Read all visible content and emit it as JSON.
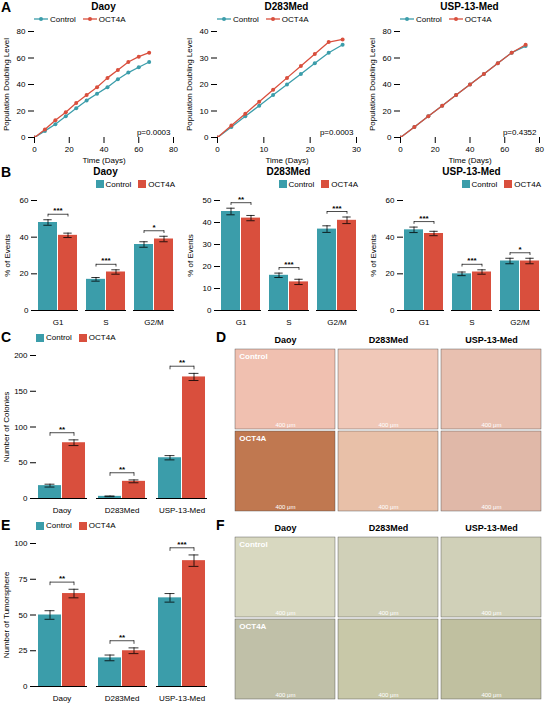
{
  "chart_data": [
    {
      "type": "line",
      "panel_label": "A",
      "title": "Daoy",
      "x": [
        0,
        6,
        12,
        18,
        24,
        30,
        36,
        42,
        48,
        54,
        60,
        66
      ],
      "series": [
        {
          "name": "Control",
          "color": "#3b9daa",
          "marker": "circle",
          "values": [
            0,
            5,
            10,
            16,
            22,
            28,
            33,
            38,
            44,
            49,
            53,
            57
          ]
        },
        {
          "name": "OCT4A",
          "color": "#d94f3d",
          "marker": "circle",
          "values": [
            0,
            6,
            13,
            19,
            26,
            32,
            38,
            45,
            51,
            57,
            61,
            64
          ]
        }
      ],
      "xlim": [
        0,
        80
      ],
      "ylim": [
        0,
        80
      ],
      "xticks": [
        0,
        20,
        40,
        60,
        80
      ],
      "yticks": [
        0,
        20,
        40,
        60,
        80
      ],
      "xlabel": "Time (Days)",
      "ylabel": "Population Doubling Level",
      "annotations": [
        "p=0.0003"
      ],
      "legend": "upper left"
    },
    {
      "type": "line",
      "title": "D283Med",
      "x": [
        0,
        3,
        6,
        9,
        12,
        15,
        18,
        21,
        24,
        27
      ],
      "series": [
        {
          "name": "Control",
          "color": "#3b9daa",
          "marker": "circle",
          "values": [
            0,
            4,
            8,
            12,
            16,
            20,
            24,
            28,
            32,
            35
          ]
        },
        {
          "name": "OCT4A",
          "color": "#d94f3d",
          "marker": "circle",
          "values": [
            0,
            4.5,
            9,
            13.5,
            18,
            22.5,
            27,
            31.5,
            36,
            37
          ]
        }
      ],
      "xlim": [
        0,
        30
      ],
      "ylim": [
        0,
        40
      ],
      "xticks": [
        0,
        10,
        20,
        30
      ],
      "yticks": [
        0,
        10,
        20,
        30,
        40
      ],
      "xlabel": "Time (Days)",
      "ylabel": "Population Doubling Level",
      "annotations": [
        "p=0.0003"
      ],
      "legend": "upper left"
    },
    {
      "type": "line",
      "title": "USP-13-Med",
      "x": [
        0,
        8,
        16,
        24,
        32,
        40,
        48,
        56,
        64,
        72
      ],
      "series": [
        {
          "name": "Control",
          "color": "#3b9daa",
          "marker": "circle",
          "values": [
            0,
            8,
            16,
            24,
            32,
            40,
            48,
            56,
            64,
            69
          ]
        },
        {
          "name": "OCT4A",
          "color": "#d94f3d",
          "marker": "circle",
          "values": [
            0,
            8,
            16,
            24,
            32,
            40,
            48,
            56,
            64,
            70
          ]
        }
      ],
      "xlim": [
        0,
        80
      ],
      "ylim": [
        0,
        80
      ],
      "xticks": [
        0,
        20,
        40,
        60,
        80
      ],
      "yticks": [
        0,
        20,
        40,
        60,
        80
      ],
      "xlabel": "Time (Days)",
      "ylabel": "Population Doubling Level",
      "annotations": [
        "p=0.4352"
      ],
      "legend": "upper left"
    },
    {
      "type": "bar",
      "panel_label": "B",
      "title": "Daoy",
      "categories": [
        "G1",
        "S",
        "G2/M"
      ],
      "series": [
        {
          "name": "Control",
          "color": "#3b9daa",
          "values": [
            48,
            17,
            36
          ],
          "errors": [
            1.5,
            1.0,
            1.5
          ]
        },
        {
          "name": "OCT4A",
          "color": "#d94f3d",
          "values": [
            41,
            21,
            39
          ],
          "errors": [
            1.2,
            1.2,
            1.5
          ]
        }
      ],
      "ylim": [
        0,
        60
      ],
      "yticks": [
        0,
        20,
        40,
        60
      ],
      "ylabel": "% of Events",
      "significance": [
        "***",
        "***",
        "*"
      ],
      "legend": "upper right"
    },
    {
      "type": "bar",
      "title": "D283Med",
      "categories": [
        "G1",
        "S",
        "G2/M"
      ],
      "series": [
        {
          "name": "Control",
          "color": "#3b9daa",
          "values": [
            45,
            16,
            37
          ],
          "errors": [
            1.5,
            1.0,
            1.5
          ]
        },
        {
          "name": "OCT4A",
          "color": "#d94f3d",
          "values": [
            42,
            13,
            41
          ],
          "errors": [
            1.2,
            1.2,
            1.5
          ]
        }
      ],
      "ylim": [
        0,
        50
      ],
      "yticks": [
        0,
        10,
        20,
        30,
        40,
        50
      ],
      "ylabel": "% of Events",
      "significance": [
        "**",
        "***",
        "***"
      ],
      "legend": "upper right"
    },
    {
      "type": "bar",
      "title": "USP-13-Med",
      "categories": [
        "G1",
        "S",
        "G2/M"
      ],
      "series": [
        {
          "name": "Control",
          "color": "#3b9daa",
          "values": [
            44,
            20,
            27
          ],
          "errors": [
            1.5,
            1.0,
            1.5
          ]
        },
        {
          "name": "OCT4A",
          "color": "#d94f3d",
          "values": [
            42,
            21,
            27
          ],
          "errors": [
            1.2,
            1.2,
            1.5
          ]
        }
      ],
      "ylim": [
        0,
        60
      ],
      "yticks": [
        0,
        20,
        40,
        60
      ],
      "ylabel": "% of Events",
      "significance": [
        "***",
        "***",
        "*"
      ],
      "legend": "upper right"
    },
    {
      "type": "bar",
      "panel_label": "C",
      "categories": [
        "Daoy",
        "D283Med",
        "USP-13-Med"
      ],
      "series": [
        {
          "name": "Control",
          "color": "#3b9daa",
          "values": [
            18,
            3,
            57
          ],
          "errors": [
            2,
            0.5,
            3
          ]
        },
        {
          "name": "OCT4A",
          "color": "#d94f3d",
          "values": [
            78,
            24,
            170
          ],
          "errors": [
            4,
            2,
            5
          ]
        }
      ],
      "ylim": [
        0,
        200
      ],
      "yticks": [
        0,
        50,
        100,
        150,
        200
      ],
      "ylabel": "Number of Colonies",
      "significance": [
        "**",
        "**",
        "**"
      ],
      "legend": "upper left"
    },
    {
      "type": "image",
      "panel_label": "D",
      "columns": [
        "Daoy",
        "D283Med",
        "USP-13-Med"
      ],
      "rows": [
        "Control",
        "OCT4A"
      ],
      "colors": [
        [
          "#f0c0b0",
          "#f0c8b8",
          "#e8c0b0"
        ],
        [
          "#c07850",
          "#e8c0a8",
          "#e0b8a8"
        ]
      ],
      "cell_label": "400 μm"
    },
    {
      "type": "bar",
      "panel_label": "E",
      "categories": [
        "Daoy",
        "D283Med",
        "USP-13-Med"
      ],
      "series": [
        {
          "name": "Control",
          "color": "#3b9daa",
          "values": [
            50,
            20,
            62
          ],
          "errors": [
            3,
            2,
            3
          ]
        },
        {
          "name": "OCT4A",
          "color": "#d94f3d",
          "values": [
            65,
            25,
            88
          ],
          "errors": [
            3,
            2,
            4
          ]
        }
      ],
      "ylim": [
        0,
        100
      ],
      "yticks": [
        0,
        25,
        50,
        75,
        100
      ],
      "ylabel": "Number of Tumorsphere",
      "significance": [
        "**",
        "**",
        "***"
      ],
      "legend": "upper left"
    },
    {
      "type": "image",
      "panel_label": "F",
      "columns": [
        "Daoy",
        "D283Med",
        "USP-13-Med"
      ],
      "rows": [
        "Control",
        "OCT4A"
      ],
      "colors": [
        [
          "#d8d8c0",
          "#d0d0b8",
          "#d0d0b8"
        ],
        [
          "#c0c0a8",
          "#c8c8a8",
          "#c0c0a0"
        ]
      ],
      "cell_label": "400 μm"
    }
  ]
}
